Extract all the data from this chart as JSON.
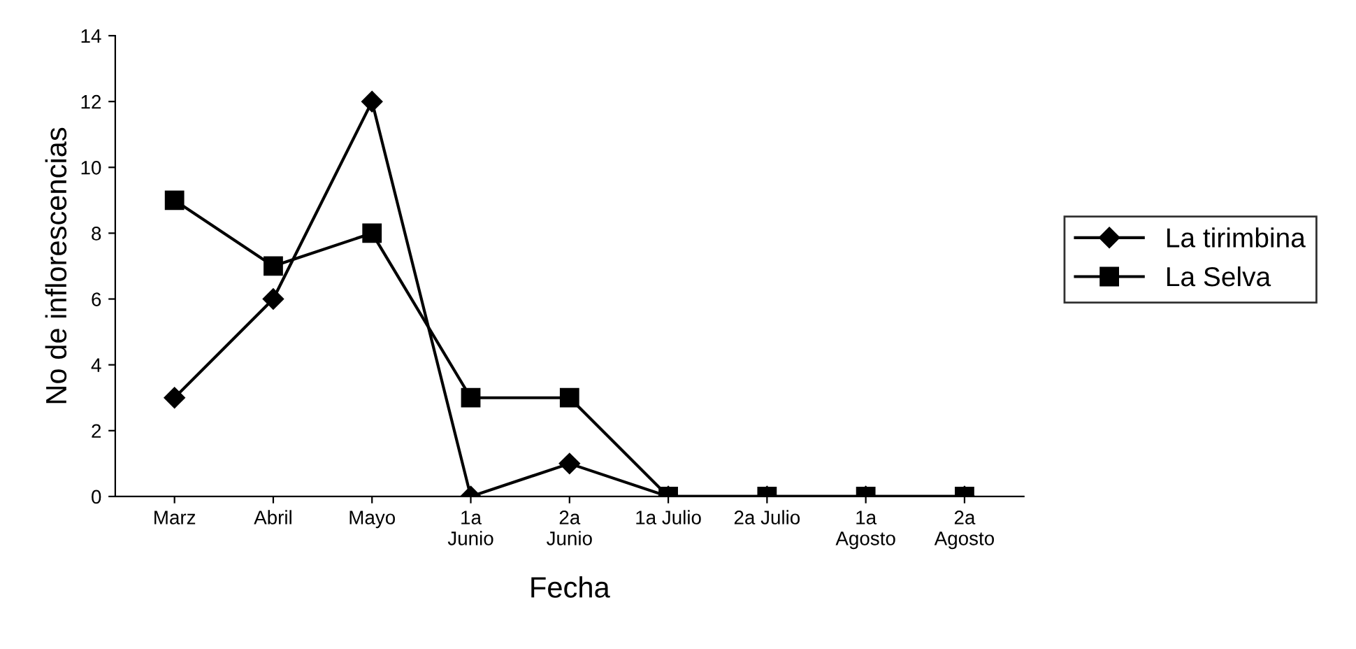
{
  "chart_data": {
    "type": "line",
    "xlabel": "Fecha",
    "ylabel": "No de inflorescencias",
    "categories": [
      "Marz",
      "Abril",
      "Mayo",
      "1a\nJunio",
      "2a\nJunio",
      "1a Julio",
      "2a Julio",
      "1a\nAgosto",
      "2a\nAgosto"
    ],
    "series": [
      {
        "name": "La tirimbina",
        "color": "#000000",
        "marker": "diamond",
        "values": [
          3,
          6,
          12,
          0,
          1,
          0,
          0,
          0,
          0
        ]
      },
      {
        "name": "La Selva",
        "color": "#000000",
        "marker": "square",
        "values": [
          9,
          7,
          8,
          3,
          3,
          0,
          0,
          0,
          0
        ]
      }
    ],
    "ylim": [
      0,
      14
    ],
    "yticks": [
      0,
      2,
      4,
      6,
      8,
      10,
      12,
      14
    ],
    "grid": false,
    "legend": "right",
    "line_style": "solid"
  }
}
